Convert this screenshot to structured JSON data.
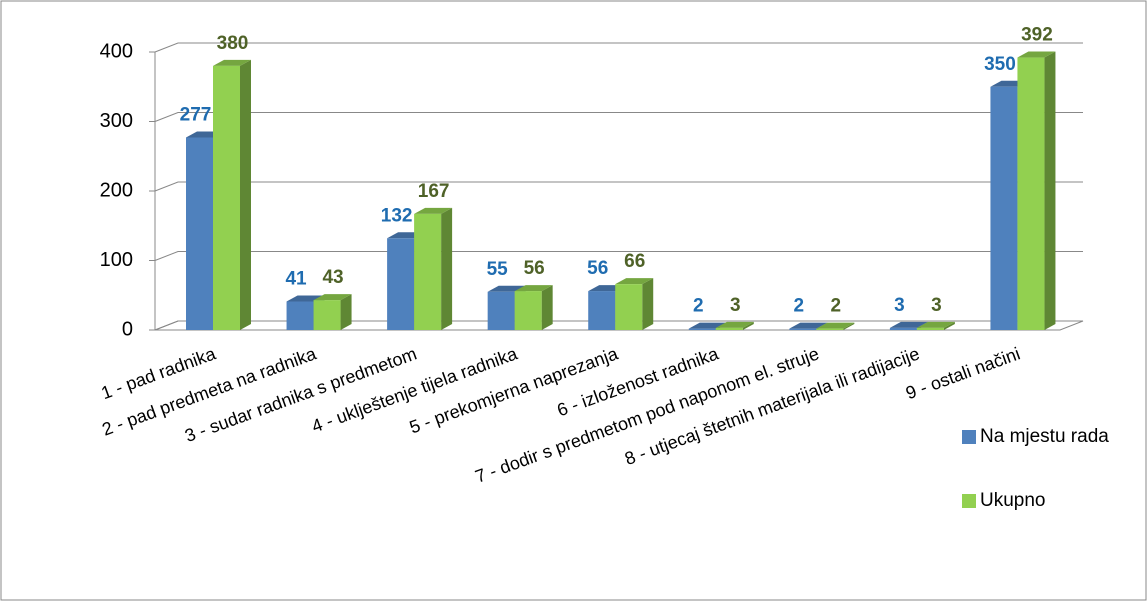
{
  "chart_data": {
    "type": "bar3d",
    "categories": [
      "1 - pad radnika",
      "2 - pad predmeta na radnika",
      "3 - sudar radnika s predmetom",
      "4 - uklještenje tijela radnika",
      "5 - prekomjerna naprezanja",
      "6 - izloženost radnika",
      "7 - dodir s predmetom pod naponom el. struje",
      "8 - utjecaj štetnih materijala ili radijacije",
      "9 - ostali načini"
    ],
    "series": [
      {
        "name": "Na mjestu rada",
        "color": "#4f81bd",
        "label_color": "#1f6cb0",
        "values": [
          277,
          41,
          132,
          55,
          56,
          2,
          2,
          3,
          350
        ]
      },
      {
        "name": "Ukupno",
        "color": "#92d050",
        "label_color": "#4f6228",
        "values": [
          380,
          43,
          167,
          56,
          66,
          3,
          2,
          3,
          392
        ]
      }
    ],
    "ylim": [
      0,
      400
    ],
    "yticks": [
      0,
      100,
      200,
      300,
      400
    ],
    "grid": true,
    "legend": "right"
  }
}
